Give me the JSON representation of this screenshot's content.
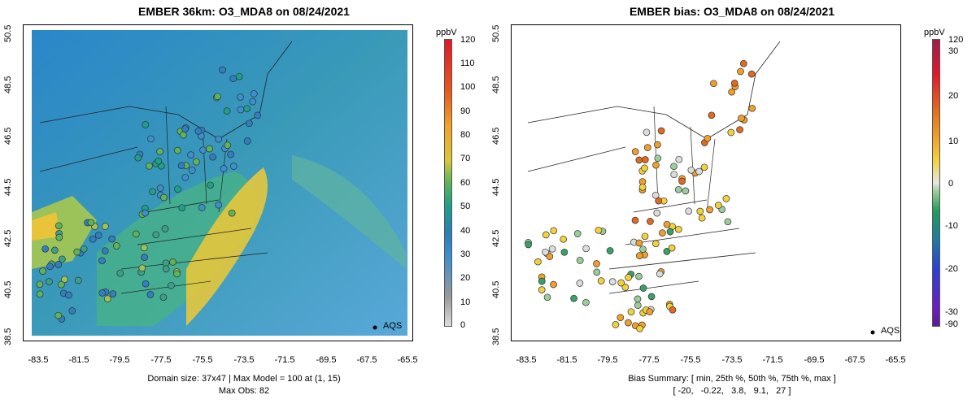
{
  "left": {
    "title": "EMBER 36km: O3_MDA8 on 08/24/2021",
    "unit": "ppbV",
    "cbar_labels": [
      "120",
      "110",
      "100",
      "90",
      "80",
      "70",
      "60",
      "50",
      "40",
      "30",
      "20",
      "10",
      "0"
    ],
    "y_ticks": [
      "50.5",
      "48.5",
      "46.5",
      "44.5",
      "42.5",
      "40.5",
      "38.5"
    ],
    "x_ticks": [
      "-83.5",
      "-81.5",
      "-79.5",
      "-77.5",
      "-75.5",
      "-73.5",
      "-71.5",
      "-69.5",
      "-67.5",
      "-65.5"
    ],
    "legend": "AQS",
    "footer_line1": "Domain size: 37x47 | Max Model = 100 at (1, 15)",
    "footer_line2": "Max Obs: 82"
  },
  "right": {
    "title": "EMBER bias: O3_MDA8 on 08/24/2021",
    "unit": "ppbV",
    "cbar_labels": [
      "120",
      "30",
      "20",
      "10",
      "0",
      "-10",
      "-20",
      "-30",
      "-90"
    ],
    "y_ticks": [
      "50.5",
      "48.5",
      "46.5",
      "44.5",
      "42.5",
      "40.5",
      "38.5"
    ],
    "x_ticks": [
      "-83.5",
      "-81.5",
      "-79.5",
      "-77.5",
      "-75.5",
      "-73.5",
      "-71.5",
      "-69.5",
      "-67.5",
      "-65.5"
    ],
    "legend": "AQS",
    "footer_line1": "Bias Summary: [ min, 25th %, 50th %, 75th %, max ]",
    "footer_line2": "[ -20,   -0.22,   3.8,   9.1,   27 ]"
  },
  "colors": {
    "conc_scale": [
      "#d9d9d9",
      "#8fa3b8",
      "#2f7fc1",
      "#1f9c9c",
      "#5fb35a",
      "#d9c33a",
      "#f2a22a",
      "#e85a1f",
      "#e3162a"
    ],
    "bias_scale": [
      "#6a1f9c",
      "#2a3fd6",
      "#1f9c5a",
      "#dcdcdc",
      "#f2d23a",
      "#e87a1f",
      "#e3162a",
      "#a01f4a"
    ]
  }
}
